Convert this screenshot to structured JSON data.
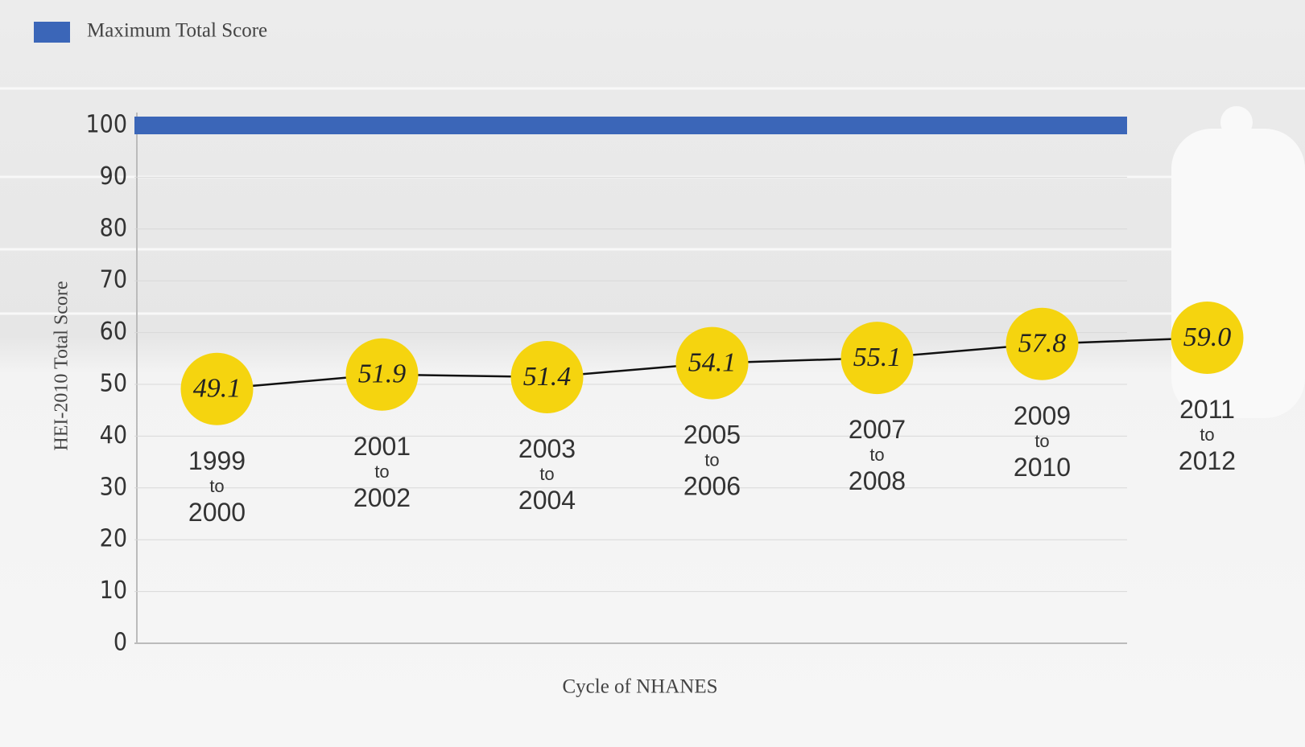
{
  "chart_data": {
    "type": "line",
    "categories": [
      "1999 to 2000",
      "2001 to 2002",
      "2003 to 2004",
      "2005 to 2006",
      "2007 to 2008",
      "2009 to 2010",
      "2011 to 2012"
    ],
    "series": [
      {
        "name": "Maximum Total Score",
        "color": "#3b66b8",
        "values": [
          100,
          100,
          100,
          100,
          100,
          100,
          100
        ]
      },
      {
        "name": null,
        "color": "#f5d40f",
        "values": [
          49.1,
          51.9,
          51.4,
          54.1,
          55.1,
          57.8,
          59.0
        ],
        "value_labels": [
          "49.1",
          "51.9",
          "51.4",
          "54.1",
          "55.1",
          "57.8",
          "59.0"
        ]
      }
    ],
    "ylabel": "HEI-2010 Total Score",
    "xlabel": "Cycle of NHANES",
    "ylim": [
      0,
      100
    ],
    "yticks": [
      0,
      10,
      20,
      30,
      40,
      50,
      60,
      70,
      80,
      90,
      100
    ],
    "grid": true,
    "legend": "top-left"
  }
}
